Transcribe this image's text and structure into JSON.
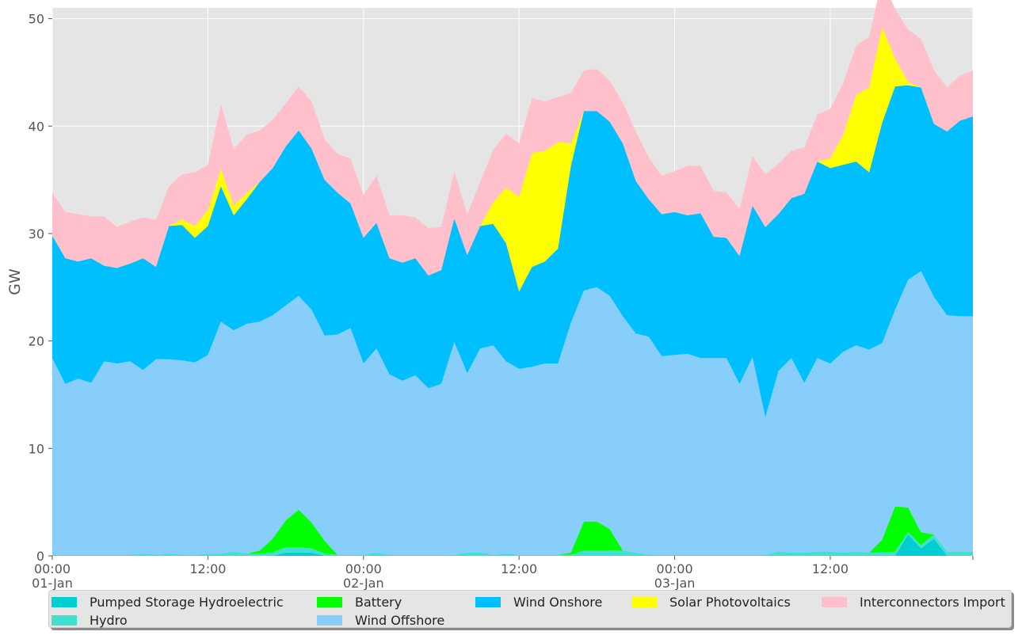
{
  "chart_data": {
    "type": "area",
    "stacked": true,
    "ylabel": "GW",
    "ylim": [
      0,
      51
    ],
    "yticks": [
      0,
      10,
      20,
      30,
      40,
      50
    ],
    "grid": true,
    "legend_position": "bottom",
    "x_start": "2020-01-01 00:00",
    "x_step_minutes": 60,
    "x_ticks": [
      {
        "hour": 0,
        "label": "00:00",
        "sublabel": "01-Jan",
        "extra": "20"
      },
      {
        "hour": 12,
        "label": "12:00",
        "sublabel": ""
      },
      {
        "hour": 24,
        "label": "00:00",
        "sublabel": "02-Jan"
      },
      {
        "hour": 36,
        "label": "12:00",
        "sublabel": ""
      },
      {
        "hour": 48,
        "label": "00:00",
        "sublabel": "03-Jan"
      },
      {
        "hour": 60,
        "label": "12:00",
        "sublabel": ""
      },
      {
        "hour": 71,
        "label": "",
        "sublabel": ""
      }
    ],
    "xlim_hours": [
      0,
      71
    ],
    "series": [
      {
        "name": "Pumped Storage Hydroelectric",
        "color": "#00CED1",
        "values": [
          0,
          0,
          0,
          0,
          0,
          0,
          0,
          0,
          0,
          0,
          0,
          0,
          0,
          0,
          0,
          0,
          0,
          0,
          0.3,
          0.3,
          0.3,
          0,
          0,
          0,
          0,
          0,
          0,
          0,
          0,
          0,
          0,
          0,
          0,
          0,
          0,
          0,
          0,
          0,
          0,
          0,
          0,
          0,
          0,
          0,
          0,
          0,
          0,
          0,
          0,
          0,
          0,
          0,
          0,
          0,
          0,
          0,
          0,
          0,
          0,
          0,
          0,
          0,
          0,
          0,
          0,
          0,
          2.0,
          0.7,
          1.6,
          0,
          0,
          0
        ]
      },
      {
        "name": "Hydro",
        "color": "#40E0D0",
        "values": [
          0.1,
          0.1,
          0.1,
          0.1,
          0.1,
          0.1,
          0.1,
          0.2,
          0.1,
          0.2,
          0.1,
          0.1,
          0.2,
          0.2,
          0.4,
          0.2,
          0.2,
          0.3,
          0.5,
          0.5,
          0.4,
          0.2,
          0.1,
          0.1,
          0.1,
          0.3,
          0.1,
          0.1,
          0.1,
          0.1,
          0.1,
          0.1,
          0.3,
          0.3,
          0.1,
          0.2,
          0.1,
          0.1,
          0.1,
          0.1,
          0.1,
          0.5,
          0.5,
          0.5,
          0.5,
          0.3,
          0.1,
          0.1,
          0.1,
          0.1,
          0.1,
          0.1,
          0.1,
          0.1,
          0.1,
          0.1,
          0.4,
          0.3,
          0.3,
          0.4,
          0.4,
          0.3,
          0.4,
          0.3,
          0.3,
          0.4,
          0.2,
          0.3,
          0.4,
          0.4,
          0.4,
          0.4
        ]
      },
      {
        "name": "Battery",
        "color": "#00FF00",
        "values": [
          0,
          0,
          0,
          0,
          0,
          0,
          0,
          0,
          0,
          0,
          0,
          0,
          0,
          0,
          0,
          0,
          0.3,
          1.3,
          2.5,
          3.5,
          2.4,
          1.2,
          0,
          0,
          0,
          0,
          0,
          0,
          0,
          0,
          0,
          0,
          0,
          0,
          0,
          0,
          0,
          0,
          0,
          0,
          0.2,
          2.7,
          2.7,
          2.0,
          0,
          0,
          0,
          0,
          0,
          0,
          0,
          0,
          0,
          0,
          0,
          0,
          0,
          0,
          0,
          0,
          0,
          0,
          0,
          0,
          1.2,
          4.2,
          2.3,
          1.2,
          0,
          0,
          0,
          0
        ]
      },
      {
        "name": "Wind Offshore",
        "color": "#87CEFA",
        "values": [
          18.3,
          15.9,
          16.4,
          16.0,
          18.0,
          17.8,
          18.0,
          17.1,
          18.2,
          18.1,
          18.1,
          17.9,
          18.5,
          21.6,
          20.6,
          21.4,
          21.3,
          20.8,
          20.0,
          19.9,
          19.8,
          19.1,
          20.5,
          21.1,
          17.8,
          19.0,
          16.8,
          16.2,
          16.7,
          15.5,
          15.9,
          19.8,
          16.7,
          19.0,
          19.5,
          17.9,
          17.3,
          17.5,
          17.8,
          17.8,
          21.4,
          21.5,
          21.8,
          21.7,
          21.8,
          20.4,
          20.3,
          18.5,
          18.6,
          18.7,
          18.3,
          18.3,
          18.3,
          15.9,
          18.4,
          12.8,
          16.8,
          18.1,
          15.8,
          18.0,
          17.5,
          18.7,
          19.2,
          18.9,
          18.3,
          18.3,
          21.2,
          24.3,
          22.1,
          22.0,
          21.9,
          21.9
        ]
      },
      {
        "name": "Wind Onshore",
        "color": "#00BFFF",
        "values": [
          11.4,
          11.7,
          10.9,
          11.6,
          8.9,
          8.9,
          9.1,
          10.4,
          8.6,
          12.4,
          12.6,
          11.6,
          12.0,
          12.6,
          10.7,
          11.6,
          13.0,
          13.7,
          14.8,
          15.4,
          15.0,
          14.5,
          13.2,
          11.6,
          11.7,
          11.7,
          10.8,
          11.0,
          10.9,
          10.5,
          10.6,
          11.5,
          11.0,
          11.4,
          11.3,
          11.0,
          7.2,
          9.3,
          9.5,
          10.7,
          14.6,
          16.7,
          16.4,
          16.2,
          16.1,
          14.2,
          12.8,
          13.2,
          13.3,
          12.9,
          13.5,
          11.3,
          11.2,
          11.9,
          14.1,
          17.7,
          14.6,
          14.9,
          17.6,
          18.3,
          18.2,
          17.4,
          17.1,
          16.5,
          20.5,
          20.8,
          18.1,
          17.1,
          16.1,
          17.1,
          18.2,
          18.6
        ]
      },
      {
        "name": "Solar Photovoltaics",
        "color": "#FFFF00",
        "values": [
          0,
          0,
          0,
          0,
          0,
          0,
          0,
          0,
          0,
          0,
          0.5,
          1.1,
          1.5,
          1.6,
          0.9,
          0.6,
          0,
          0,
          0,
          0,
          0,
          0,
          0,
          0,
          0,
          0,
          0,
          0,
          0,
          0,
          0,
          0,
          0,
          0,
          2.0,
          5.2,
          8.8,
          10.6,
          10.3,
          9.9,
          2.1,
          0,
          0,
          0,
          0,
          0,
          0,
          0,
          0,
          0,
          0,
          0,
          0,
          0,
          0,
          0,
          0,
          0,
          0,
          0,
          0.9,
          2.8,
          6.2,
          7.9,
          8.9,
          2.6,
          0.3,
          0,
          0,
          0,
          0,
          0
        ]
      },
      {
        "name": "Interconnectors Import",
        "color": "#FFC0CB",
        "values": [
          4.0,
          4.3,
          4.4,
          3.9,
          4.6,
          3.8,
          3.9,
          3.8,
          4.4,
          3.7,
          4.2,
          5.0,
          4.2,
          6.0,
          5.3,
          5.4,
          4.8,
          4.5,
          4.0,
          4.1,
          4.4,
          3.8,
          3.6,
          4.2,
          4.0,
          4.4,
          4.0,
          4.4,
          3.8,
          4.4,
          4.0,
          4.4,
          3.8,
          4.1,
          4.9,
          5.0,
          5.0,
          5.1,
          4.6,
          4.2,
          4.7,
          3.8,
          3.9,
          3.8,
          3.8,
          4.6,
          3.9,
          3.6,
          3.8,
          4.6,
          4.4,
          4.3,
          4.2,
          4.4,
          4.6,
          4.9,
          4.7,
          4.4,
          4.3,
          4.4,
          4.6,
          4.8,
          4.6,
          4.7,
          4.5,
          4.6,
          4.9,
          4.5,
          5.0,
          4.1,
          4.2,
          4.3
        ]
      }
    ]
  }
}
